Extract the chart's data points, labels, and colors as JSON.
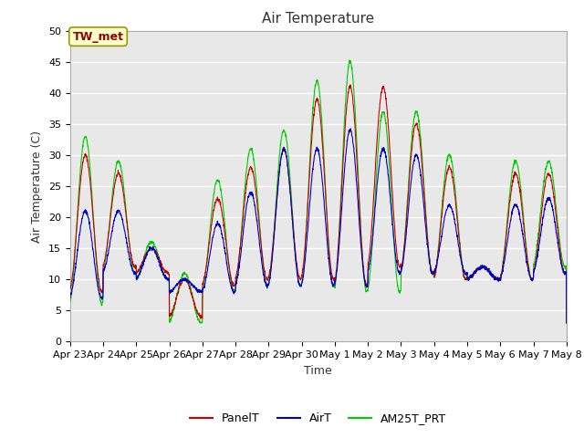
{
  "title": "Air Temperature",
  "ylabel": "Air Temperature (C)",
  "xlabel": "Time",
  "annotation": "TW_met",
  "ylim": [
    0,
    50
  ],
  "yticks": [
    0,
    5,
    10,
    15,
    20,
    25,
    30,
    35,
    40,
    45,
    50
  ],
  "x_labels": [
    "Apr 23",
    "Apr 24",
    "Apr 25",
    "Apr 26",
    "Apr 27",
    "Apr 28",
    "Apr 29",
    "Apr 30",
    "May 1",
    "May 2",
    "May 3",
    "May 4",
    "May 5",
    "May 6",
    "May 7",
    "May 8"
  ],
  "line_colors": {
    "PanelT": "#cc0000",
    "AirT": "#0000cc",
    "AM25T_PRT": "#00cc00"
  },
  "bg_color": "#ffffff",
  "plot_bg_color": "#e8e8e8",
  "grid_color": "#ffffff",
  "title_fontsize": 11,
  "axis_fontsize": 9,
  "tick_fontsize": 8,
  "annotation_fontsize": 9,
  "figsize": [
    6.4,
    4.8
  ],
  "dpi": 100
}
